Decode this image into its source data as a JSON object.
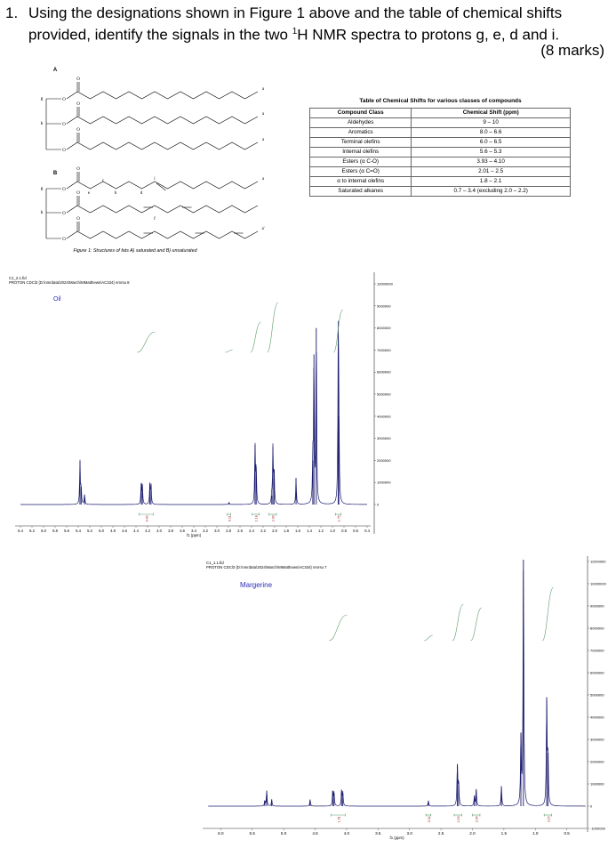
{
  "question": {
    "number": "1.",
    "text_parts": [
      "Using the designations shown in Figure 1 above and the table of chemical shifts provided, identify the signals in the two ",
      "1",
      "H NMR spectra to protons g, e, d and i."
    ],
    "marks": "(8 marks)"
  },
  "figure": {
    "label_a": "A",
    "label_b": "B",
    "atom_o": "O",
    "labels": {
      "g": "g",
      "h": "h",
      "a": "a",
      "a_prime": "a'",
      "b": "b",
      "c": "c",
      "d": "d",
      "e": "e",
      "f": "f",
      "i": "i"
    },
    "caption": "Figure 1: Structures of fats A) saturated and B) unsaturated"
  },
  "table": {
    "title": "Table of Chemical Shifts for various classes of compounds",
    "headers": [
      "Compound Class",
      "Chemical Shift (ppm)"
    ],
    "rows": [
      [
        "Aldehydes",
        "9 – 10"
      ],
      [
        "Aromatics",
        "8.0 – 6.6"
      ],
      [
        "Terminal olefins",
        "6.0 – 6.5"
      ],
      [
        "Internal olefins",
        "5.6 – 5.3"
      ],
      [
        "Esters (α C-O)",
        "3.93 – 4.10"
      ],
      [
        "Esters (α C=O)",
        "2.01 – 2.5"
      ],
      [
        "α to internal olefins",
        "1.8 – 2.1"
      ],
      [
        "Saturated alkanes",
        "0.7 – 3.4 (excluding 2.0 – 2.2)"
      ]
    ]
  },
  "chart_data": [
    {
      "type": "line",
      "file": "C1_2.1.fid",
      "subtitle": "PROTON CDCl3 {D:\\nmrdata\\2024\\March\\MMatthews\\AC334} nmrsu 8",
      "title": "Oil",
      "xlabel": "f1 (ppm)",
      "xlim": [
        6.4,
        0.4
      ],
      "xticks": [
        "6.4",
        "6.2",
        "6.0",
        "5.8",
        "5.6",
        "5.4",
        "5.2",
        "5.0",
        "4.8",
        "4.6",
        "4.4",
        "4.2",
        "4.0",
        "3.8",
        "3.6",
        "3.4",
        "3.2",
        "3.0",
        "2.8",
        "2.6",
        "2.4",
        "2.2",
        "2.0",
        "1.8",
        "1.6",
        "1.4",
        "1.2",
        "1.0",
        "0.8",
        "0.6",
        "0.4"
      ],
      "ylim": [
        0,
        10000000
      ],
      "yticks": [
        "10000000",
        "9000000",
        "8000000",
        "7000000",
        "6000000",
        "5000000",
        "4000000",
        "3000000",
        "2000000",
        "1000000",
        "0"
      ],
      "peaks": [
        [
          5.37,
          1950000
        ],
        [
          5.35,
          800000
        ],
        [
          5.29,
          450000
        ],
        [
          4.31,
          950000
        ],
        [
          4.29,
          900000
        ],
        [
          4.16,
          950000
        ],
        [
          4.14,
          900000
        ],
        [
          2.79,
          100000
        ],
        [
          2.34,
          2700000
        ],
        [
          2.32,
          1700000
        ],
        [
          2.05,
          400000
        ],
        [
          2.03,
          2600000
        ],
        [
          2.01,
          1500000
        ],
        [
          1.63,
          1200000
        ],
        [
          1.34,
          2000000
        ],
        [
          1.32,
          6800000
        ],
        [
          1.28,
          8000000
        ],
        [
          0.9,
          7000000
        ],
        [
          0.89,
          4000000
        ]
      ],
      "integrals": [
        {
          "from": 4.35,
          "to": 4.1,
          "value": "6.00"
        },
        {
          "from": 2.82,
          "to": 2.76,
          "value": "0.11"
        },
        {
          "from": 2.39,
          "to": 2.27,
          "value": "1.18"
        },
        {
          "from": 2.1,
          "to": 1.97,
          "value": "2.00"
        },
        {
          "from": 0.95,
          "to": 0.85,
          "value": "1.75"
        }
      ],
      "series_color": "#1a1a6e",
      "integral_color": "#5a9a6a",
      "title_color": "#2a2ab8"
    },
    {
      "type": "line",
      "file": "C1_1.1.fid",
      "subtitle": "PROTON CDCl3 {D:\\nmrdata\\2024\\March\\MMatthews\\AC334} nmrsu 7",
      "title": "Margerine",
      "xlabel": "f1 (ppm)",
      "xlim": [
        6.2,
        0.2
      ],
      "xticks": [
        "6.0",
        "5.5",
        "5.0",
        "4.5",
        "4.0",
        "3.5",
        "3.0",
        "2.5",
        "2.0",
        "1.5",
        "1.0",
        "0.5"
      ],
      "ylim": [
        -1000000,
        11000000
      ],
      "yticks": [
        "11000000",
        "10000000",
        "9000000",
        "8000000",
        "7000000",
        "6000000",
        "5000000",
        "4000000",
        "3000000",
        "2000000",
        "1000000",
        "0",
        "-1000000"
      ],
      "peaks": [
        [
          5.27,
          700000
        ],
        [
          5.3,
          250000
        ],
        [
          5.19,
          300000
        ],
        [
          4.58,
          300000
        ],
        [
          4.22,
          700000
        ],
        [
          4.2,
          600000
        ],
        [
          4.08,
          700000
        ],
        [
          4.06,
          600000
        ],
        [
          2.7,
          250000
        ],
        [
          2.24,
          1900000
        ],
        [
          2.22,
          1100000
        ],
        [
          1.97,
          450000
        ],
        [
          1.94,
          750000
        ],
        [
          1.54,
          900000
        ],
        [
          1.23,
          3300000
        ],
        [
          1.19,
          11500000
        ],
        [
          0.82,
          4900000
        ],
        [
          0.8,
          2400000
        ]
      ],
      "integrals": [
        {
          "from": 4.25,
          "to": 4.02,
          "value": "1.51"
        },
        {
          "from": 2.74,
          "to": 2.66,
          "value": "0.32"
        },
        {
          "from": 2.29,
          "to": 2.17,
          "value": "2.19"
        },
        {
          "from": 2.0,
          "to": 1.88,
          "value": "2.00"
        },
        {
          "from": 0.86,
          "to": 0.74,
          "value": "3.15"
        }
      ],
      "series_color": "#1a1a6e",
      "integral_color": "#5a9a6a",
      "title_color": "#2a2ab8"
    }
  ]
}
